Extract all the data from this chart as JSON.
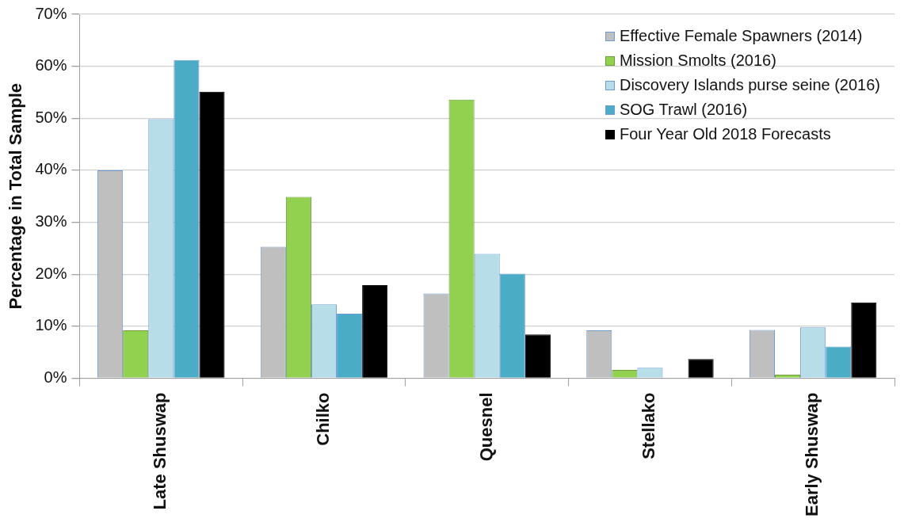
{
  "chart_data": {
    "type": "bar",
    "ylabel": "Percentage in Total Sample",
    "categories": [
      "Late Shuswap",
      "Chilko",
      "Quesnel",
      "Stellako",
      "Early Shuswap"
    ],
    "series": [
      {
        "name": "Effective Female Spawners (2014)",
        "color": "#bfbfbf",
        "values": [
          40.0,
          25.3,
          16.3,
          9.2,
          9.3
        ]
      },
      {
        "name": "Mission Smolts (2016)",
        "color": "#92d050",
        "values": [
          9.2,
          34.9,
          53.6,
          1.6,
          0.7
        ]
      },
      {
        "name": "Discovery Islands purse seine (2016)",
        "color": "#b7dee8",
        "values": [
          49.8,
          14.2,
          23.9,
          2.0,
          9.8
        ]
      },
      {
        "name": "SOG Trawl (2016)",
        "color": "#4bacc6",
        "values": [
          61.2,
          12.4,
          20.1,
          0,
          6.1
        ]
      },
      {
        "name": "Four Year Old 2018 Forecasts",
        "color": "#000000",
        "values": [
          55.1,
          17.9,
          8.4,
          3.7,
          14.6
        ]
      }
    ],
    "ylim": [
      0,
      70
    ],
    "yticks": [
      {
        "value": 0,
        "label": "0%"
      },
      {
        "value": 10,
        "label": "10%"
      },
      {
        "value": 20,
        "label": "20%"
      },
      {
        "value": 30,
        "label": "30%"
      },
      {
        "value": 40,
        "label": "40%"
      },
      {
        "value": 50,
        "label": "50%"
      },
      {
        "value": 60,
        "label": "60%"
      },
      {
        "value": 70,
        "label": "70%"
      }
    ],
    "grid": "y",
    "legend": "top right"
  }
}
